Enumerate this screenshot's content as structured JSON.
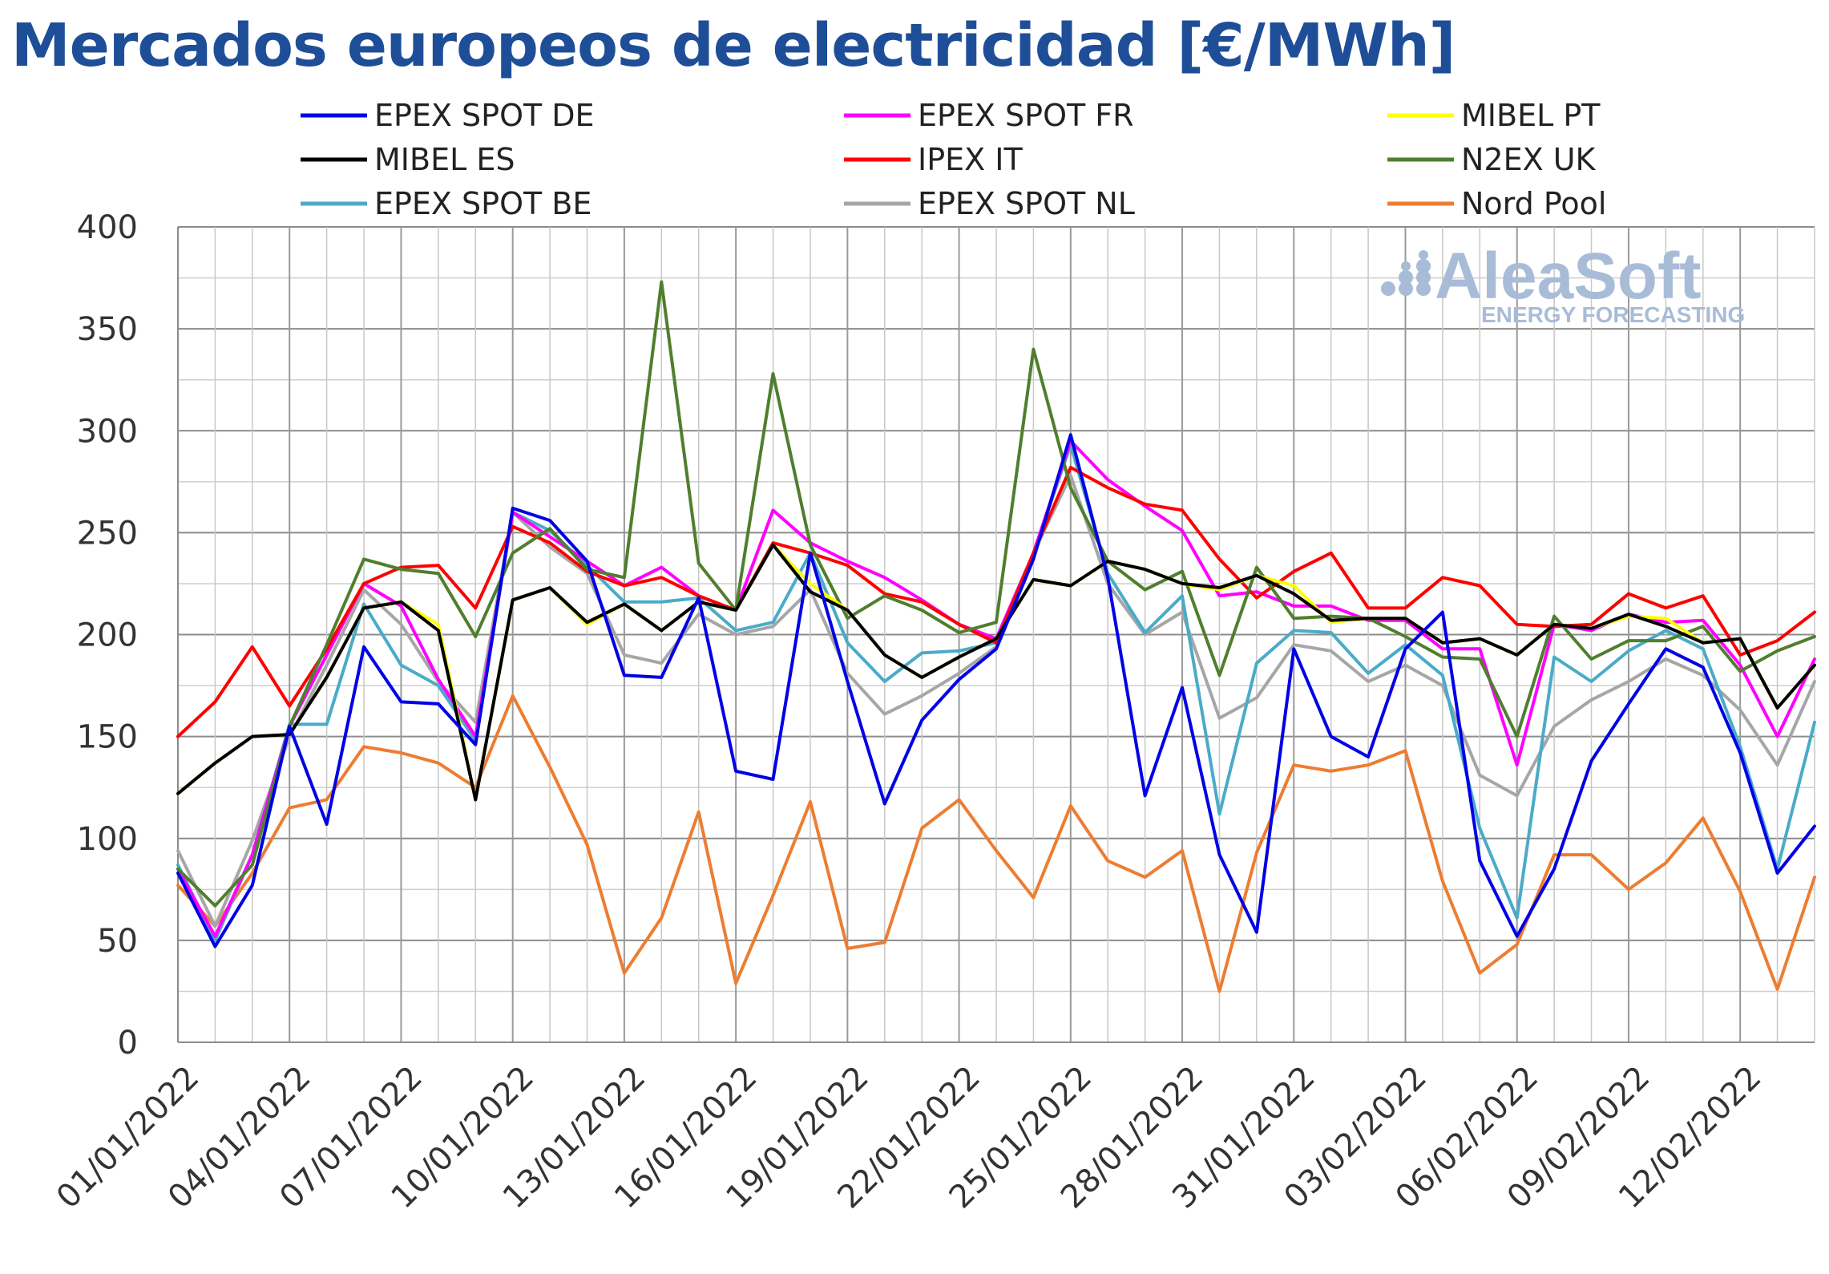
{
  "chart_data": {
    "type": "line",
    "title": "Mercados europeos de electricidad [€/MWh]",
    "xlabel": "",
    "ylabel": "",
    "ylim": [
      0,
      400
    ],
    "yticks": [
      "0",
      "50",
      "100",
      "150",
      "200",
      "250",
      "300",
      "350",
      "400"
    ],
    "x": [
      "01/01/2022",
      "02/01/2022",
      "03/01/2022",
      "04/01/2022",
      "05/01/2022",
      "06/01/2022",
      "07/01/2022",
      "08/01/2022",
      "09/01/2022",
      "10/01/2022",
      "11/01/2022",
      "12/01/2022",
      "13/01/2022",
      "14/01/2022",
      "15/01/2022",
      "16/01/2022",
      "17/01/2022",
      "18/01/2022",
      "19/01/2022",
      "20/01/2022",
      "21/01/2022",
      "22/01/2022",
      "23/01/2022",
      "24/01/2022",
      "25/01/2022",
      "26/01/2022",
      "27/01/2022",
      "28/01/2022",
      "29/01/2022",
      "30/01/2022",
      "31/01/2022",
      "01/02/2022",
      "02/02/2022",
      "03/02/2022",
      "04/02/2022",
      "05/02/2022",
      "06/02/2022",
      "07/02/2022",
      "08/02/2022",
      "09/02/2022",
      "10/02/2022",
      "11/02/2022",
      "12/02/2022",
      "13/02/2022",
      "14/02/2022"
    ],
    "xticks": [
      "01/01/2022",
      "04/01/2022",
      "07/01/2022",
      "10/01/2022",
      "13/01/2022",
      "16/01/2022",
      "19/01/2022",
      "22/01/2022",
      "25/01/2022",
      "28/01/2022",
      "31/01/2022",
      "03/02/2022",
      "06/02/2022",
      "09/02/2022",
      "12/02/2022"
    ],
    "grid": true,
    "legend_position": "top",
    "series": [
      {
        "name": "EPEX SPOT DE",
        "color": "#0000e6",
        "values": [
          83,
          47,
          77,
          155,
          107,
          194,
          167,
          166,
          146,
          262,
          256,
          236,
          180,
          179,
          218,
          133,
          129,
          240,
          177,
          117,
          158,
          178,
          193,
          237,
          298,
          228,
          121,
          174,
          92,
          54,
          193,
          150,
          140,
          193,
          211,
          89,
          52,
          85,
          138,
          166,
          193,
          184,
          142,
          83,
          106
        ]
      },
      {
        "name": "EPEX SPOT FR",
        "color": "#ff00ff",
        "values": [
          85,
          52,
          92,
          155,
          190,
          225,
          214,
          178,
          150,
          260,
          248,
          236,
          224,
          233,
          219,
          212,
          261,
          245,
          236,
          228,
          217,
          205,
          198,
          240,
          295,
          276,
          263,
          251,
          219,
          221,
          214,
          214,
          207,
          207,
          193,
          193,
          136,
          205,
          202,
          210,
          206,
          207,
          185,
          150,
          188
        ]
      },
      {
        "name": "MIBEL PT",
        "color": "#ffff00",
        "values": [
          122,
          137,
          150,
          151,
          179,
          213,
          216,
          205,
          119,
          217,
          223,
          205,
          215,
          202,
          216,
          212,
          244,
          225,
          212,
          190,
          179,
          189,
          198,
          227,
          224,
          236,
          232,
          225,
          222,
          229,
          224,
          206,
          208,
          208,
          196,
          198,
          190,
          205,
          203,
          209,
          208,
          196,
          198,
          164,
          185
        ]
      },
      {
        "name": "MIBEL ES",
        "color": "#000000",
        "values": [
          122,
          137,
          150,
          151,
          179,
          213,
          216,
          202,
          119,
          217,
          223,
          206,
          215,
          202,
          216,
          212,
          244,
          221,
          212,
          190,
          179,
          189,
          198,
          227,
          224,
          236,
          232,
          225,
          223,
          229,
          220,
          207,
          208,
          208,
          196,
          198,
          190,
          205,
          203,
          210,
          204,
          196,
          198,
          164,
          185
        ]
      },
      {
        "name": "IPEX IT",
        "color": "#ff0000",
        "values": [
          150,
          167,
          194,
          165,
          193,
          225,
          233,
          234,
          213,
          253,
          245,
          231,
          224,
          228,
          219,
          212,
          245,
          240,
          234,
          220,
          216,
          205,
          196,
          240,
          282,
          272,
          264,
          261,
          237,
          218,
          231,
          240,
          213,
          213,
          228,
          224,
          205,
          204,
          205,
          220,
          213,
          219,
          190,
          197,
          211
        ]
      },
      {
        "name": "N2EX UK",
        "color": "#4f7f2e",
        "values": [
          85,
          67,
          87,
          155,
          195,
          237,
          232,
          230,
          199,
          240,
          252,
          232,
          228,
          373,
          235,
          212,
          328,
          244,
          208,
          219,
          212,
          201,
          206,
          340,
          272,
          236,
          222,
          231,
          180,
          233,
          208,
          209,
          208,
          199,
          189,
          188,
          150,
          209,
          188,
          197,
          197,
          204,
          182,
          192,
          199
        ]
      },
      {
        "name": "EPEX SPOT BE",
        "color": "#4aabc8",
        "values": [
          87,
          50,
          92,
          156,
          156,
          215,
          185,
          175,
          148,
          260,
          251,
          234,
          216,
          216,
          218,
          202,
          206,
          240,
          196,
          177,
          191,
          192,
          196,
          240,
          293,
          230,
          201,
          219,
          112,
          186,
          202,
          201,
          181,
          195,
          180,
          105,
          61,
          189,
          177,
          192,
          202,
          193,
          145,
          85,
          157
        ]
      },
      {
        "name": "EPEX SPOT NL",
        "color": "#a6a6a6",
        "values": [
          94,
          57,
          99,
          150,
          185,
          222,
          205,
          177,
          157,
          260,
          243,
          230,
          190,
          186,
          210,
          200,
          204,
          222,
          181,
          161,
          170,
          181,
          194,
          240,
          278,
          225,
          200,
          211,
          159,
          169,
          195,
          192,
          177,
          185,
          175,
          131,
          121,
          155,
          168,
          177,
          188,
          180,
          163,
          136,
          177
        ]
      },
      {
        "name": "Nord Pool",
        "color": "#ed7d31",
        "values": [
          77,
          57,
          83,
          115,
          119,
          145,
          142,
          137,
          125,
          170,
          135,
          97,
          34,
          61,
          113,
          29,
          72,
          118,
          46,
          49,
          105,
          119,
          94,
          71,
          116,
          89,
          81,
          94,
          25,
          93,
          136,
          133,
          136,
          143,
          79,
          34,
          48,
          92,
          92,
          75,
          88,
          110,
          74,
          26,
          81
        ]
      }
    ]
  },
  "watermark": {
    "brand": "AleaSoft",
    "tagline": "ENERGY FORECASTING"
  }
}
